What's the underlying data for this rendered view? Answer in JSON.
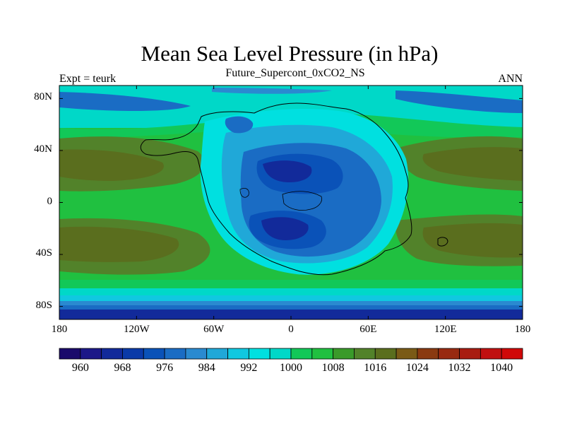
{
  "title": "Mean Sea Level Pressure (in hPa)",
  "subtitle": "Future_Supercont_0xCO2_NS",
  "left_label": "Expt = teurk",
  "right_label": "ANN",
  "map": {
    "projection": "cylindrical-equidistant",
    "lon_range": [
      -180,
      180
    ],
    "lat_range": [
      -90,
      90
    ],
    "y_ticks": [
      {
        "label": "80N",
        "lat": 80
      },
      {
        "label": "40N",
        "lat": 40
      },
      {
        "label": "0",
        "lat": 0
      },
      {
        "label": "40S",
        "lat": -40
      },
      {
        "label": "80S",
        "lat": -80
      }
    ],
    "x_ticks": [
      {
        "label": "180",
        "lon": -180
      },
      {
        "label": "120W",
        "lon": -120
      },
      {
        "label": "60W",
        "lon": -60
      },
      {
        "label": "0",
        "lon": 0
      },
      {
        "label": "60E",
        "lon": 60
      },
      {
        "label": "120E",
        "lon": 120
      },
      {
        "label": "180",
        "lon": 180
      }
    ],
    "field": "mean sea level pressure",
    "units": "hPa"
  },
  "colorbar": {
    "levels": [
      960,
      964,
      968,
      972,
      976,
      980,
      984,
      988,
      992,
      996,
      1000,
      1004,
      1008,
      1012,
      1016,
      1020,
      1024,
      1028,
      1032,
      1036,
      1040
    ],
    "labels": [
      "960",
      "968",
      "976",
      "984",
      "992",
      "1000",
      "1008",
      "1016",
      "1024",
      "1032",
      "1040"
    ],
    "label_values": [
      960,
      968,
      976,
      984,
      992,
      1000,
      1008,
      1016,
      1024,
      1032,
      1040
    ],
    "colors": [
      "#1a0a6b",
      "#1c1888",
      "#122a9a",
      "#0a3aa8",
      "#0a52b8",
      "#1a6cc4",
      "#2a8ad0",
      "#20a8d8",
      "#10c8e0",
      "#00e0e0",
      "#00d8c8",
      "#12c858",
      "#20c040",
      "#3a9a2a",
      "#52822a",
      "#5a6e1e",
      "#7a5a16",
      "#8a3a10",
      "#982a10",
      "#a81c10",
      "#c01010",
      "#d00808"
    ]
  }
}
